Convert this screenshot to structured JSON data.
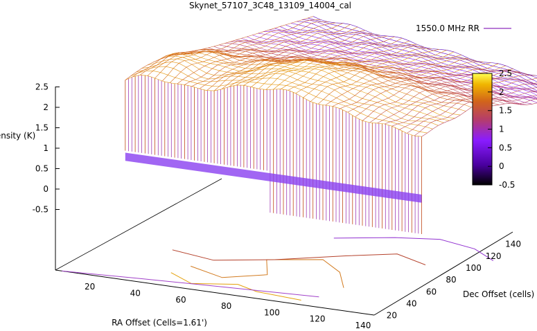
{
  "chart_data": {
    "type": "surface3d",
    "title": "Skynet_57107_3C48_13109_14004_cal",
    "legend": {
      "label": "1550.0 MHz RR",
      "placement": "top-right"
    },
    "xlabel": "RA Offset (Cells=1.61')",
    "ylabel": "Dec Offset (cells)",
    "zlabel": "Intensity (K)",
    "x_ticks": [
      "20",
      "40",
      "60",
      "80",
      "100",
      "120",
      "140"
    ],
    "y_ticks": [
      "20",
      "40",
      "60",
      "80",
      "100",
      "120",
      "140"
    ],
    "z_ticks": [
      "2.5",
      "2",
      "1.5",
      "1",
      "0.5",
      "0",
      "-0.5"
    ],
    "colorbar_ticks": [
      "2.5",
      "2",
      "1.5",
      "1",
      "0.5",
      "0",
      "-0.5"
    ],
    "zlim": [
      -0.5,
      2.5
    ],
    "colorbar_range": [
      -0.5,
      2.5
    ],
    "colormap": [
      "#000000",
      "#7a00ff",
      "#b43c6e",
      "#d26a14",
      "#f0c800",
      "#ffff40"
    ],
    "grid": false,
    "contours": true
  }
}
